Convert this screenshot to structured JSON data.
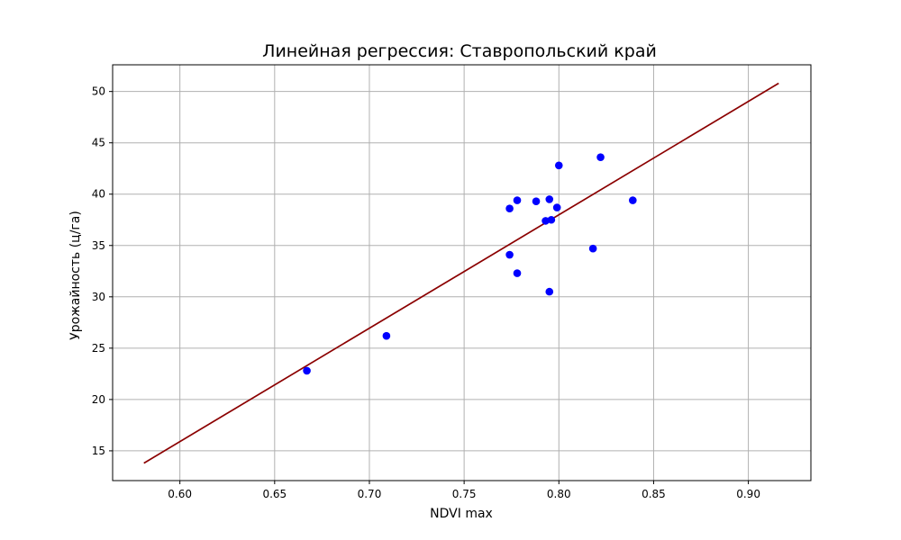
{
  "chart_data": {
    "type": "scatter",
    "title": "Линейная регрессия: Ставропольский край",
    "xlabel": "NDVI max",
    "ylabel": "Урожайность (ц/га)",
    "xlim": [
      0.5645,
      0.933
    ],
    "ylim": [
      12.1,
      52.6
    ],
    "xticks": [
      0.6,
      0.65,
      0.7,
      0.75,
      0.8,
      0.85,
      0.9
    ],
    "xtick_labels": [
      "0.60",
      "0.65",
      "0.70",
      "0.75",
      "0.80",
      "0.85",
      "0.90"
    ],
    "yticks": [
      15,
      20,
      25,
      30,
      35,
      40,
      45,
      50
    ],
    "ytick_labels": [
      "15",
      "20",
      "25",
      "30",
      "35",
      "40",
      "45",
      "50"
    ],
    "grid": true,
    "series": [
      {
        "kind": "scatter",
        "color": "#0000ff",
        "points": [
          {
            "x": 0.667,
            "y": 22.8
          },
          {
            "x": 0.709,
            "y": 26.2
          },
          {
            "x": 0.774,
            "y": 38.6
          },
          {
            "x": 0.774,
            "y": 34.1
          },
          {
            "x": 0.778,
            "y": 39.4
          },
          {
            "x": 0.778,
            "y": 32.3
          },
          {
            "x": 0.788,
            "y": 39.3
          },
          {
            "x": 0.793,
            "y": 37.4
          },
          {
            "x": 0.795,
            "y": 39.5
          },
          {
            "x": 0.795,
            "y": 30.5
          },
          {
            "x": 0.796,
            "y": 37.5
          },
          {
            "x": 0.799,
            "y": 38.7
          },
          {
            "x": 0.8,
            "y": 42.8
          },
          {
            "x": 0.818,
            "y": 34.7
          },
          {
            "x": 0.822,
            "y": 43.6
          },
          {
            "x": 0.839,
            "y": 39.4
          }
        ]
      },
      {
        "kind": "line",
        "color": "#8b0000",
        "points": [
          {
            "x": 0.581,
            "y": 13.8
          },
          {
            "x": 0.916,
            "y": 50.8
          }
        ]
      }
    ]
  }
}
